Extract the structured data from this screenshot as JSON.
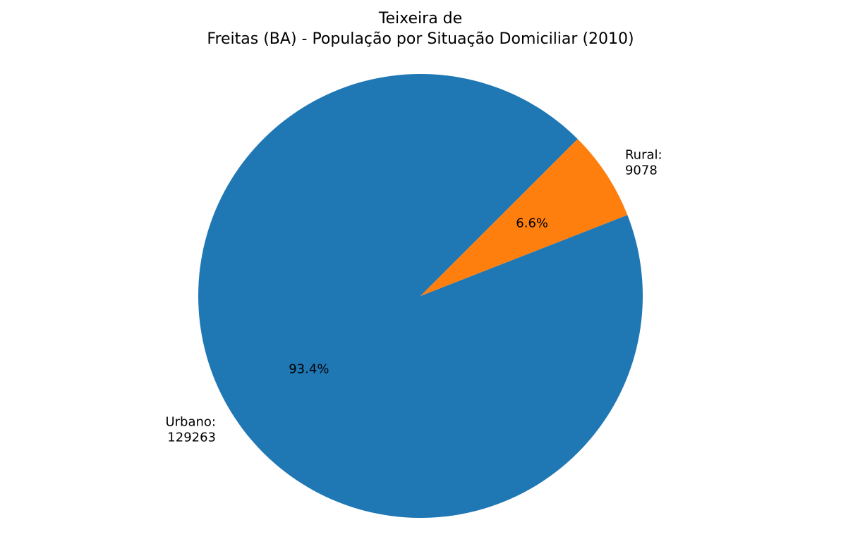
{
  "chart_data": {
    "type": "pie",
    "title_lines": [
      "Teixeira de",
      "Freitas (BA) - População por Situação Domiciliar (2010)"
    ],
    "slices": [
      {
        "name": "Urbano",
        "value": 129263,
        "label_lines": [
          "Urbano:",
          "129263"
        ],
        "percent_label": "93.4%",
        "color": "#1f77b4"
      },
      {
        "name": "Rural",
        "value": 9078,
        "label_lines": [
          "Rural:",
          "9078"
        ],
        "percent_label": "6.6%",
        "color": "#ff7f0e"
      }
    ],
    "start_angle_deg": 45,
    "direction": "counterclockwise",
    "legend": "none",
    "grid": false
  }
}
